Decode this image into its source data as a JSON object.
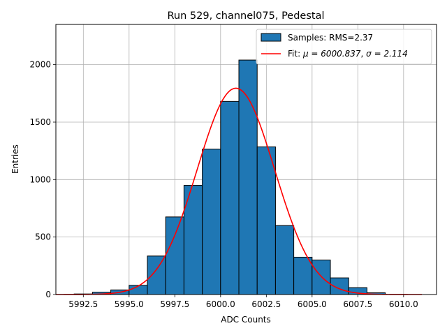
{
  "chart_data": {
    "type": "bar",
    "title": "Run 529, channel075, Pedestal",
    "xlabel": "ADC Counts",
    "ylabel": "Entries",
    "xlim": [
      5991.0,
      6011.8
    ],
    "ylim": [
      0,
      2350
    ],
    "x_ticks": [
      5992.5,
      5995.0,
      5997.5,
      6000.0,
      6002.5,
      6005.0,
      6007.5,
      6010.0
    ],
    "x_tick_labels": [
      "5992.5",
      "5995.0",
      "5997.5",
      "6000.0",
      "6002.5",
      "6005.0",
      "6007.5",
      "6010.0"
    ],
    "y_ticks": [
      0,
      500,
      1000,
      1500,
      2000
    ],
    "y_tick_labels": [
      "0",
      "500",
      "1000",
      "1500",
      "2000"
    ],
    "grid": true,
    "legend_position": "top-right",
    "colors": {
      "bar_fill": "#1f77b4",
      "bar_edge": "#000000",
      "fit_line": "#ff0000",
      "grid": "#b0b0b0"
    },
    "histogram": {
      "name": "Samples: RMS=2.37",
      "bin_edges": [
        5992,
        5993,
        5994,
        5995,
        5996,
        5997,
        5998,
        5999,
        6000,
        6001,
        6002,
        6003,
        6004,
        6005,
        6006,
        6007,
        6008,
        6009
      ],
      "counts": [
        5,
        20,
        40,
        80,
        335,
        675,
        950,
        1265,
        1680,
        2040,
        1285,
        600,
        325,
        300,
        145,
        60,
        15
      ]
    },
    "fit": {
      "name_prefix": "Fit: ",
      "name_mu": "μ = 6000.837",
      "name_sep": ", ",
      "name_sigma": "σ = 2.114",
      "mu": 6000.837,
      "sigma": 2.114,
      "amplitude": 1795,
      "x_range": [
        5991.0,
        6011.0
      ]
    }
  }
}
